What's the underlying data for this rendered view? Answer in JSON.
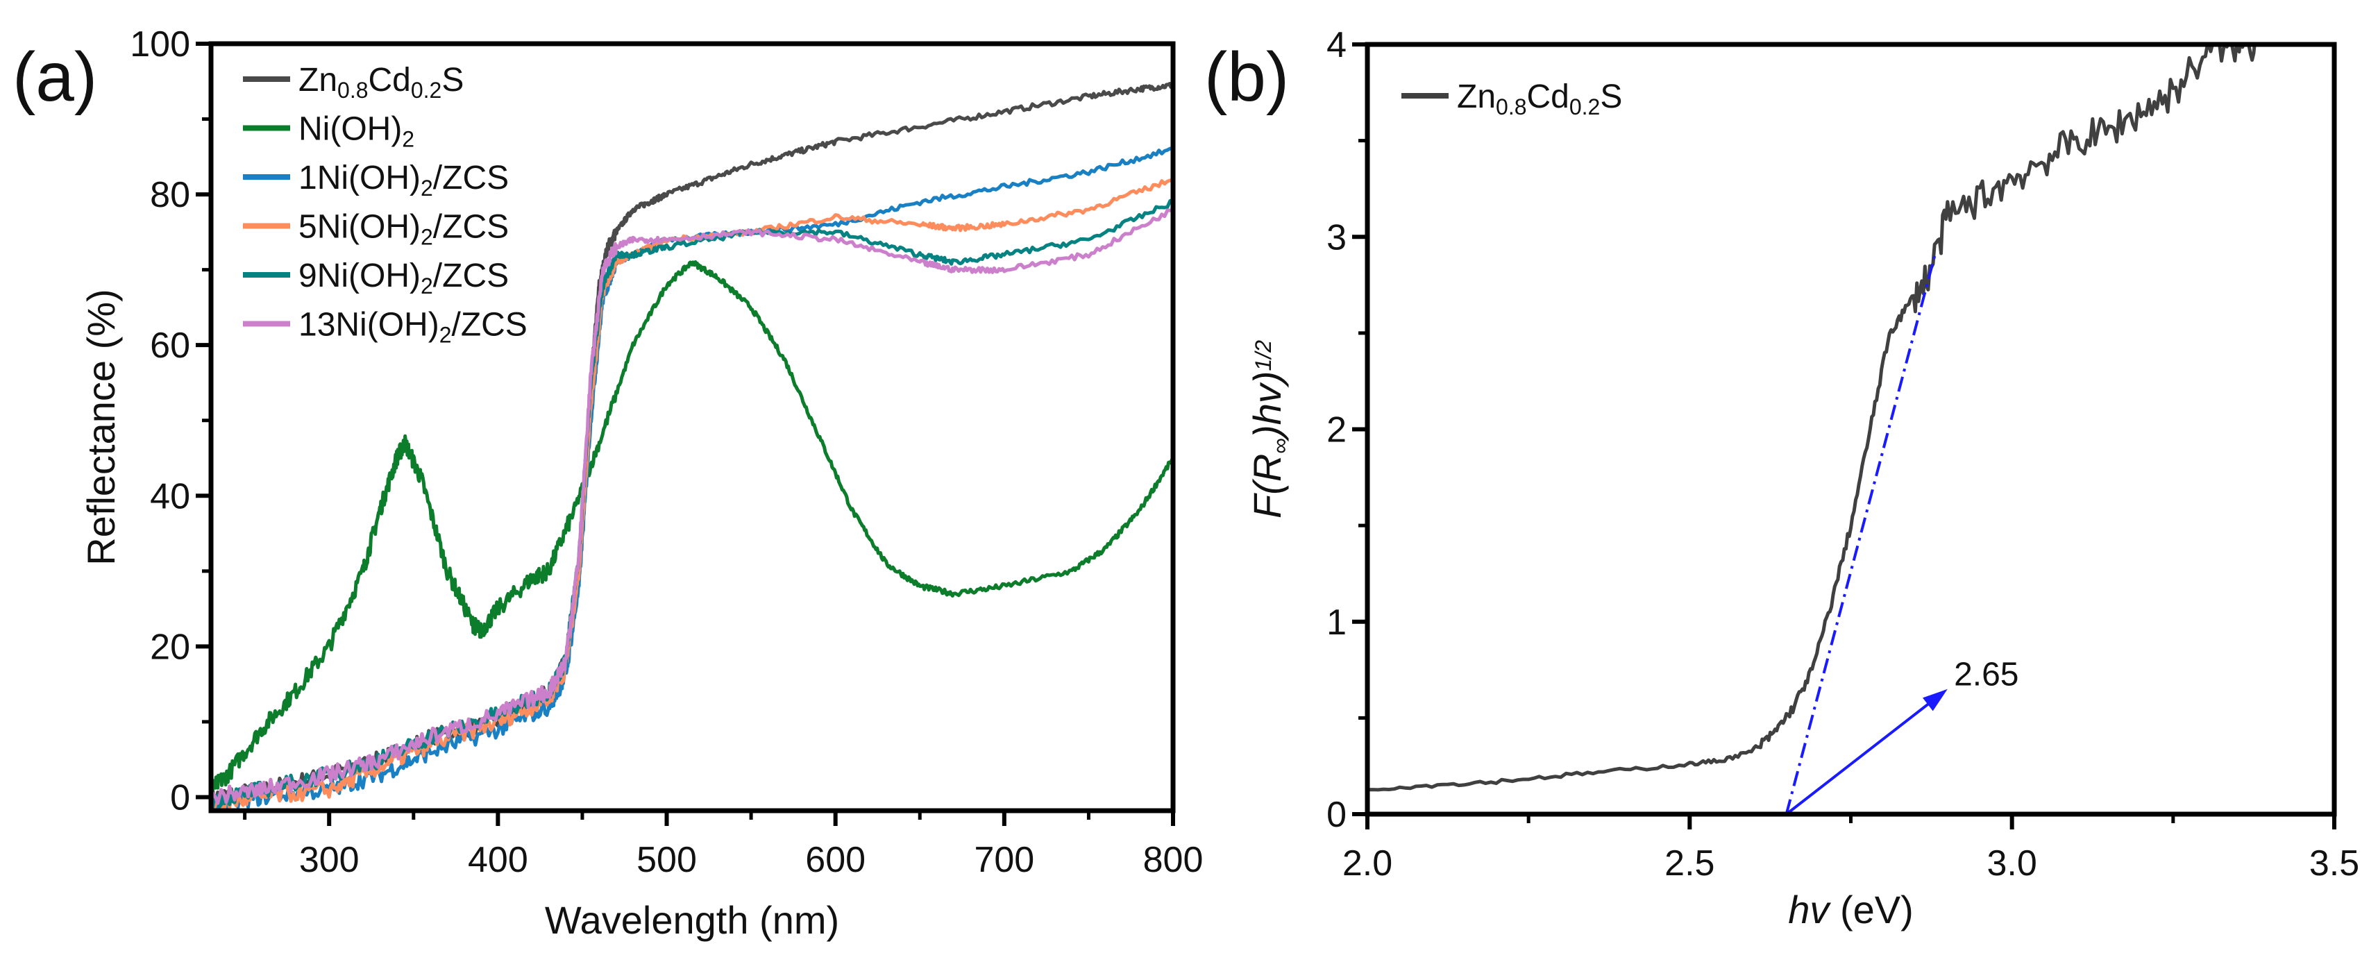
{
  "chart_data": [
    {
      "panel_label": "(a)",
      "type": "line",
      "xlabel": "Wavelength (nm)",
      "ylabel": "Reflectance (%)",
      "xlim": [
        230,
        800
      ],
      "ylim": [
        -1.8,
        100
      ],
      "xticks": [
        300,
        400,
        500,
        600,
        700,
        800
      ],
      "yticks": [
        0,
        20,
        40,
        60,
        80,
        100
      ],
      "grid": false,
      "legend_position": "top-left",
      "series": [
        {
          "name": "Zn0.8Cd0.2S",
          "label_parts": [
            [
              "Zn",
              ""
            ],
            [
              "0.8",
              "sub"
            ],
            [
              "Cd",
              ""
            ],
            [
              "0.2",
              "sub"
            ],
            [
              "S",
              ""
            ]
          ],
          "color": "#4a4a4a",
          "x": [
            230,
            260,
            300,
            330,
            360,
            400,
            430,
            440,
            448,
            455,
            460,
            465,
            470,
            480,
            490,
            500,
            525,
            550,
            575,
            600,
            650,
            700,
            750,
            780,
            800
          ],
          "y": [
            0,
            1,
            3,
            5,
            8,
            10,
            14,
            18,
            30,
            55,
            68,
            73,
            75,
            78,
            79,
            80,
            82,
            84,
            85.5,
            87,
            89,
            91,
            93,
            94,
            94.5
          ]
        },
        {
          "name": "Ni(OH)2",
          "label_parts": [
            [
              "Ni(OH)",
              ""
            ],
            [
              "2",
              "sub"
            ]
          ],
          "color": "#0b7d2b",
          "x": [
            230,
            240,
            260,
            280,
            300,
            320,
            330,
            340,
            345,
            355,
            370,
            385,
            390,
            400,
            420,
            430,
            445,
            460,
            480,
            500,
            515,
            530,
            550,
            570,
            590,
            610,
            630,
            650,
            670,
            700,
            740,
            760,
            780,
            800
          ],
          "y": [
            1,
            3,
            9,
            14,
            20,
            30,
            38,
            45,
            47,
            42,
            30,
            23,
            22,
            25,
            29,
            30,
            38,
            47,
            60,
            68,
            71,
            69,
            65,
            58,
            48,
            38,
            31,
            28,
            27,
            28,
            30,
            33,
            38,
            45
          ]
        },
        {
          "name": "1Ni(OH)2/ZCS",
          "label_parts": [
            [
              "1Ni(OH)",
              ""
            ],
            [
              "2",
              "sub"
            ],
            [
              "/ZCS",
              ""
            ]
          ],
          "color": "#1a80c4",
          "x": [
            230,
            260,
            300,
            330,
            360,
            400,
            430,
            440,
            448,
            455,
            462,
            470,
            480,
            500,
            550,
            600,
            650,
            700,
            750,
            800
          ],
          "y": [
            -1,
            0,
            1,
            3,
            6,
            9,
            12,
            16,
            28,
            50,
            66,
            71,
            72,
            74,
            75,
            76,
            79,
            81,
            83,
            86
          ]
        },
        {
          "name": "5Ni(OH)2/ZCS",
          "label_parts": [
            [
              "5Ni(OH)",
              ""
            ],
            [
              "2",
              "sub"
            ],
            [
              "/ZCS",
              ""
            ]
          ],
          "color": "#ff8c5c",
          "x": [
            230,
            260,
            300,
            330,
            360,
            400,
            430,
            440,
            448,
            455,
            462,
            470,
            480,
            500,
            550,
            600,
            650,
            670,
            700,
            750,
            800
          ],
          "y": [
            -1,
            0,
            1,
            4,
            7,
            10,
            13,
            17,
            30,
            52,
            67,
            71,
            72,
            74,
            75,
            77,
            76,
            75.5,
            76,
            78,
            82
          ]
        },
        {
          "name": "9Ni(OH)2/ZCS",
          "label_parts": [
            [
              "9Ni(OH)",
              ""
            ],
            [
              "2",
              "sub"
            ],
            [
              "/ZCS",
              ""
            ]
          ],
          "color": "#058282",
          "x": [
            230,
            260,
            300,
            330,
            360,
            400,
            430,
            440,
            448,
            455,
            462,
            470,
            480,
            500,
            550,
            600,
            650,
            670,
            700,
            750,
            800
          ],
          "y": [
            -0.5,
            1,
            3,
            5,
            8,
            11,
            14,
            18,
            32,
            55,
            68,
            72,
            72,
            73,
            75,
            75,
            72,
            71,
            72,
            74,
            79
          ]
        },
        {
          "name": "13Ni(OH)2/ZCS",
          "label_parts": [
            [
              "13Ni(OH)",
              ""
            ],
            [
              "2",
              "sub"
            ],
            [
              "/ZCS",
              ""
            ]
          ],
          "color": "#cc80cc",
          "x": [
            230,
            260,
            300,
            330,
            360,
            400,
            430,
            440,
            448,
            455,
            462,
            470,
            480,
            500,
            550,
            600,
            650,
            670,
            700,
            750,
            800
          ],
          "y": [
            0,
            1,
            3,
            5,
            8,
            11,
            14,
            18,
            32,
            56,
            70,
            73,
            74,
            74,
            75,
            74,
            71,
            70,
            70,
            72,
            78
          ]
        }
      ]
    },
    {
      "panel_label": "(b)",
      "type": "line",
      "xlabel_parts": [
        [
          "hv",
          "it"
        ],
        [
          " (eV)",
          ""
        ]
      ],
      "ylabel_parts": [
        [
          "F(R",
          "it"
        ],
        [
          "∞",
          "sub"
        ],
        [
          ")hv)",
          "it"
        ],
        [
          "1/2",
          "sup"
        ]
      ],
      "xlim": [
        2.0,
        3.5
      ],
      "ylim": [
        0,
        4
      ],
      "xticks": [
        "2.0",
        "2.5",
        "3.0",
        "3.5"
      ],
      "yticks": [
        0,
        1,
        2,
        3,
        4
      ],
      "grid": false,
      "legend_position": "top-left",
      "series": [
        {
          "name": "Zn0.8Cd0.2S",
          "label_parts": [
            [
              "Zn",
              ""
            ],
            [
              "0.8",
              "sub"
            ],
            [
              "Cd",
              ""
            ],
            [
              "0.2",
              "sub"
            ],
            [
              "S",
              ""
            ]
          ],
          "color": "#404040",
          "x": [
            2.0,
            2.1,
            2.2,
            2.3,
            2.4,
            2.5,
            2.55,
            2.6,
            2.63,
            2.66,
            2.69,
            2.72,
            2.75,
            2.78,
            2.81,
            2.84,
            2.87,
            2.9,
            2.95,
            3.0,
            3.05,
            3.1,
            3.15,
            3.2,
            3.25,
            3.3,
            3.35,
            3.38
          ],
          "y": [
            0.13,
            0.15,
            0.17,
            0.2,
            0.23,
            0.26,
            0.28,
            0.33,
            0.42,
            0.55,
            0.75,
            1.1,
            1.5,
            2.0,
            2.5,
            2.65,
            2.8,
            3.1,
            3.2,
            3.3,
            3.4,
            3.5,
            3.55,
            3.65,
            3.75,
            3.95,
            4.0,
            4.0
          ]
        }
      ],
      "annotations": {
        "tangent_line": {
          "x": [
            2.65,
            2.88
          ],
          "y": [
            0,
            2.9
          ],
          "color": "#1a1aff"
        },
        "arrow": {
          "x": [
            2.65,
            2.9
          ],
          "y": [
            0,
            0.65
          ],
          "color": "#1a1aff"
        },
        "bandgap_label": {
          "text": "2.65",
          "x": 2.91,
          "y": 0.72
        }
      }
    }
  ]
}
